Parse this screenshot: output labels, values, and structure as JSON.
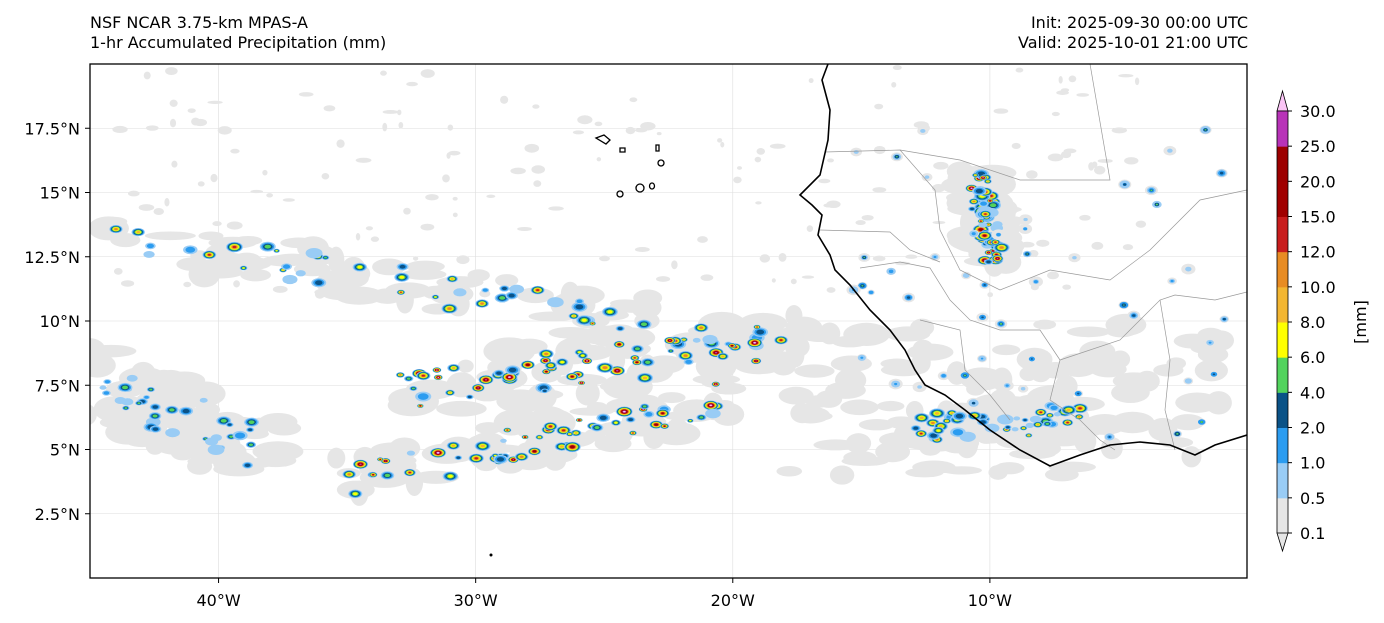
{
  "header": {
    "model": "NSF NCAR 3.75-km MPAS-A",
    "field": "1-hr Accumulated Precipitation (mm)",
    "init": "Init: 2025-09-30 00:00 UTC",
    "valid": "Valid: 2025-10-01 21:00 UTC"
  },
  "axes": {
    "x_ticks": [
      {
        "value": -40,
        "label": "40°W"
      },
      {
        "value": -30,
        "label": "30°W"
      },
      {
        "value": -20,
        "label": "20°W"
      },
      {
        "value": -10,
        "label": "10°W"
      }
    ],
    "y_ticks": [
      {
        "value": 2.5,
        "label": "2.5°N"
      },
      {
        "value": 5,
        "label": "5°N"
      },
      {
        "value": 7.5,
        "label": "7.5°N"
      },
      {
        "value": 10,
        "label": "10°N"
      },
      {
        "value": 12.5,
        "label": "12.5°N"
      },
      {
        "value": 15,
        "label": "15°N"
      },
      {
        "value": 17.5,
        "label": "17.5°N"
      }
    ],
    "lon_range": [
      -45,
      0
    ],
    "lat_range": [
      0,
      20
    ]
  },
  "colorbar": {
    "unit_label": "[mm]",
    "levels": [
      "0.1",
      "0.5",
      "1.0",
      "2.0",
      "4.0",
      "6.0",
      "8.0",
      "10.0",
      "12.0",
      "15.0",
      "20.0",
      "25.0",
      "30.0"
    ],
    "colors": [
      "#e6e6e6",
      "#99ccf5",
      "#2b9cf0",
      "#0a5287",
      "#52d35d",
      "#ffff00",
      "#f3b632",
      "#e88c24",
      "#c81d1d",
      "#a00000",
      "#9c0000",
      "#b833b8",
      "#fac4f5"
    ]
  },
  "precip_bands": [
    {
      "lon0": -45,
      "lat0": 13.5,
      "lon1": -18,
      "lat1": 9.0,
      "width": 0.8,
      "intensity": "moderate"
    },
    {
      "lon0": -33,
      "lat0": 7.3,
      "lon1": -18,
      "lat1": 9.2,
      "width": 0.9,
      "intensity": "heavy"
    },
    {
      "lon0": -35,
      "lat0": 3.8,
      "lon1": -20,
      "lat1": 7.0,
      "width": 0.8,
      "intensity": "heavy"
    },
    {
      "lon0": -45,
      "lat0": 7.5,
      "lon1": -38,
      "lat1": 5.0,
      "width": 1.2,
      "intensity": "light"
    },
    {
      "lon0": -10.5,
      "lat0": 15.5,
      "lon1": -9.8,
      "lat1": 12.5,
      "width": 0.6,
      "intensity": "heavy"
    },
    {
      "lon0": -13,
      "lat0": 5.8,
      "lon1": -6.5,
      "lat1": 6.2,
      "width": 0.7,
      "intensity": "moderate"
    }
  ]
}
